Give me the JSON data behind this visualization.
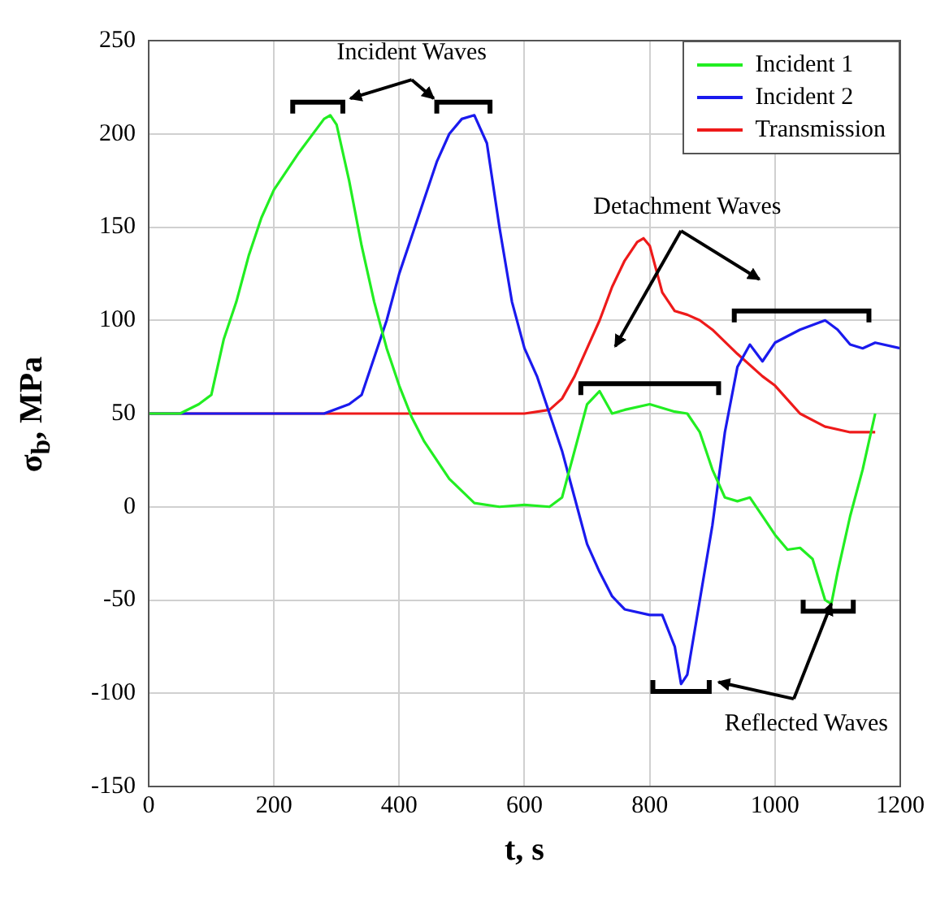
{
  "chart_data": {
    "type": "line",
    "xlabel": "t, s",
    "ylabel": "σ$_{b}$, MPa",
    "xlim": [
      0,
      1200
    ],
    "xticks": [
      0,
      200,
      400,
      600,
      800,
      1000,
      1200
    ],
    "ylim": [
      -150,
      250
    ],
    "yticks": [
      -150,
      -100,
      -50,
      0,
      50,
      100,
      150,
      200,
      250
    ],
    "grid": true,
    "legend": "top right",
    "marker": "none",
    "line_style": "solid",
    "annotations": [
      "Incident Waves",
      "Detachment Waves",
      {
        "text": "Reflected Waves",
        "x": 1090,
        "y": -52
      }
    ],
    "series": [
      {
        "name": "Incident 1",
        "color": "#22ee22",
        "x": [
          0,
          50,
          80,
          100,
          120,
          140,
          160,
          180,
          200,
          240,
          280,
          290,
          300,
          320,
          340,
          360,
          380,
          400,
          420,
          440,
          480,
          520,
          560,
          600,
          640,
          660,
          680,
          700,
          720,
          740,
          760,
          800,
          840,
          860,
          880,
          900,
          920,
          940,
          960,
          980,
          1000,
          1020,
          1040,
          1060,
          1080,
          1090,
          1100,
          1120,
          1140,
          1160
        ],
        "values": [
          50,
          50,
          55,
          60,
          90,
          110,
          135,
          155,
          170,
          190,
          208,
          210,
          205,
          175,
          140,
          110,
          85,
          65,
          48,
          35,
          15,
          2,
          0,
          1,
          0,
          5,
          30,
          55,
          62,
          50,
          52,
          55,
          51,
          50,
          40,
          20,
          5,
          3,
          5,
          -5,
          -15,
          -23,
          -22,
          -28,
          -50,
          -52,
          -35,
          -5,
          20,
          50
        ]
      },
      {
        "name": "Incident 2",
        "color": "#1a1aee",
        "x": [
          0,
          280,
          320,
          340,
          360,
          380,
          400,
          420,
          440,
          460,
          480,
          500,
          520,
          540,
          560,
          580,
          600,
          620,
          640,
          660,
          680,
          700,
          720,
          740,
          760,
          800,
          820,
          840,
          850,
          860,
          880,
          900,
          920,
          940,
          960,
          980,
          1000,
          1040,
          1080,
          1100,
          1120,
          1140,
          1160,
          1200
        ],
        "values": [
          50,
          50,
          55,
          60,
          80,
          100,
          125,
          145,
          165,
          185,
          200,
          208,
          210,
          195,
          150,
          110,
          85,
          70,
          50,
          30,
          5,
          -20,
          -35,
          -48,
          -55,
          -58,
          -58,
          -75,
          -95,
          -90,
          -50,
          -10,
          40,
          75,
          87,
          78,
          88,
          95,
          100,
          95,
          87,
          85,
          88,
          85
        ]
      },
      {
        "name": "Transmission",
        "color": "#ee1a1a",
        "x": [
          0,
          600,
          640,
          660,
          680,
          700,
          720,
          740,
          760,
          780,
          790,
          800,
          820,
          840,
          860,
          880,
          900,
          940,
          980,
          1000,
          1040,
          1080,
          1120,
          1160
        ],
        "values": [
          50,
          50,
          52,
          58,
          70,
          85,
          100,
          118,
          132,
          142,
          144,
          140,
          115,
          105,
          103,
          100,
          95,
          82,
          70,
          65,
          50,
          43,
          40,
          40
        ]
      }
    ]
  }
}
